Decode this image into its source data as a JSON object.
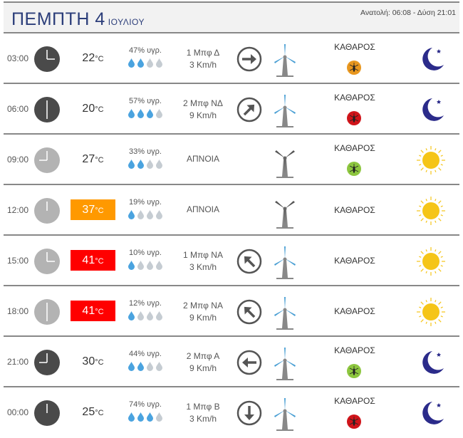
{
  "header": {
    "day": "ΠΕΜΠΤΗ 4",
    "month": "ΙΟΥΛΙΟΥ",
    "sun": "Ανατολή: 06:08  - Δύση 21:01"
  },
  "colors": {
    "title": "#2c3e7a",
    "temp_orange": "#ff9900",
    "temp_red": "#ff0000",
    "drop_filled": "#4aa3df",
    "drop_empty": "#c5ccd2",
    "mosquito_orange": "#e8971f",
    "mosquito_red": "#d0141a",
    "mosquito_green": "#8dc63f",
    "clock_day": "#b3b3b3",
    "clock_night": "#4a4a4a",
    "moon": "#2b2b8a",
    "sun": "#f5c518"
  },
  "rows": [
    {
      "time": "03:00",
      "hour": 3,
      "clock": "night",
      "temp": "22",
      "unit": "°C",
      "temp_level": "normal",
      "humidity": "47% υγρ.",
      "drops": 2,
      "wind1": "1 Μπφ Δ",
      "wind2": "3 Km/h",
      "arrow": "right",
      "turbine": "spinning",
      "condition": "ΚΑΘΑΡΟΣ",
      "mosquito": "orange",
      "icon": "moon"
    },
    {
      "time": "06:00",
      "hour": 6,
      "clock": "night",
      "temp": "20",
      "unit": "°C",
      "temp_level": "normal",
      "humidity": "57% υγρ.",
      "drops": 3,
      "wind1": "2 Μπφ ΝΔ",
      "wind2": "9 Km/h",
      "arrow": "up-right",
      "turbine": "spinning",
      "condition": "ΚΑΘΑΡΟΣ",
      "mosquito": "red",
      "icon": "moon"
    },
    {
      "time": "09:00",
      "hour": 9,
      "clock": "day",
      "temp": "27",
      "unit": "°C",
      "temp_level": "normal",
      "humidity": "33% υγρ.",
      "drops": 2,
      "wind1": "ΑΠΝΟΙΑ",
      "wind2": "",
      "arrow": "",
      "turbine": "still",
      "condition": "ΚΑΘΑΡΟΣ",
      "mosquito": "green",
      "icon": "sun"
    },
    {
      "time": "12:00",
      "hour": 12,
      "clock": "day",
      "temp": "37",
      "unit": "°C",
      "temp_level": "orange",
      "humidity": "19% υγρ.",
      "drops": 1,
      "wind1": "ΑΠΝΟΙΑ",
      "wind2": "",
      "arrow": "",
      "turbine": "still",
      "condition": "ΚΑΘΑΡΟΣ",
      "mosquito": "",
      "icon": "sun"
    },
    {
      "time": "15:00",
      "hour": 15,
      "clock": "day",
      "temp": "41",
      "unit": "°C",
      "temp_level": "red",
      "humidity": "10% υγρ.",
      "drops": 1,
      "wind1": "1 Μπφ ΝΑ",
      "wind2": "3 Km/h",
      "arrow": "up-left",
      "turbine": "spinning",
      "condition": "ΚΑΘΑΡΟΣ",
      "mosquito": "",
      "icon": "sun"
    },
    {
      "time": "18:00",
      "hour": 18,
      "clock": "day",
      "temp": "41",
      "unit": "°C",
      "temp_level": "red",
      "humidity": "12% υγρ.",
      "drops": 1,
      "wind1": "2 Μπφ ΝΑ",
      "wind2": "9 Km/h",
      "arrow": "up-left",
      "turbine": "spinning",
      "condition": "ΚΑΘΑΡΟΣ",
      "mosquito": "",
      "icon": "sun"
    },
    {
      "time": "21:00",
      "hour": 21,
      "clock": "night",
      "temp": "30",
      "unit": "°C",
      "temp_level": "normal",
      "humidity": "44% υγρ.",
      "drops": 2,
      "wind1": "2 Μπφ Α",
      "wind2": "9 Km/h",
      "arrow": "left",
      "turbine": "spinning",
      "condition": "ΚΑΘΑΡΟΣ",
      "mosquito": "green",
      "icon": "moon"
    },
    {
      "time": "00:00",
      "hour": 0,
      "clock": "night",
      "temp": "25",
      "unit": "°C",
      "temp_level": "normal",
      "humidity": "74% υγρ.",
      "drops": 3,
      "wind1": "1 Μπφ Β",
      "wind2": "3 Km/h",
      "arrow": "down",
      "turbine": "spinning",
      "condition": "ΚΑΘΑΡΟΣ",
      "mosquito": "red",
      "icon": "moon"
    }
  ]
}
